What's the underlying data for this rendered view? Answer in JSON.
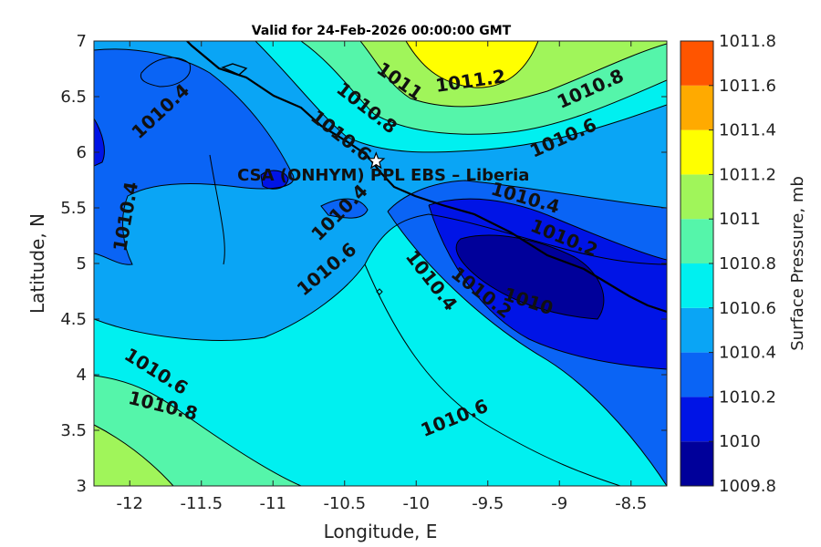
{
  "chart_data": {
    "type": "contour",
    "title": "Valid for 24-Feb-2026 00:00:00 GMT",
    "xlabel": "Longitude, E",
    "ylabel": "Latitude, N",
    "xlim": [
      -12.25,
      -8.25
    ],
    "ylim": [
      3,
      7
    ],
    "xticks": [
      -12,
      -11.5,
      -11,
      -10.5,
      -10,
      -9.5,
      -9,
      -8.5
    ],
    "yticks": [
      3,
      3.5,
      4,
      4.5,
      5,
      5.5,
      6,
      6.5,
      7
    ],
    "xtick_labels": [
      "-12",
      "-11.5",
      "-11",
      "-10.5",
      "-10",
      "-9.5",
      "-9",
      "-8.5"
    ],
    "ytick_labels": [
      "3",
      "3.5",
      "4",
      "4.5",
      "5",
      "5.5",
      "6",
      "6.5",
      "7"
    ],
    "colorbar": {
      "label": "Surface Pressure, mb",
      "levels": [
        1009.8,
        1010,
        1010.2,
        1010.4,
        1010.6,
        1010.8,
        1011,
        1011.2,
        1011.4,
        1011.6,
        1011.8
      ],
      "tick_labels": [
        "1009.8",
        "1010",
        "1010.2",
        "1010.4",
        "1010.6",
        "1010.8",
        "1011",
        "1011.2",
        "1011.4",
        "1011.6",
        "1011.8"
      ],
      "colors": [
        "#00009a",
        "#0014e6",
        "#0a64f5",
        "#0aa5f5",
        "#00f0f0",
        "#55f5aa",
        "#a0f55a",
        "#ffff00",
        "#ffaa00",
        "#ff5500",
        "#ff0000"
      ]
    },
    "site": {
      "name": "CSA (ONHYM) PPL EBS  – Liberia",
      "lon": -10.28,
      "lat": 5.92
    },
    "contour_labels": [
      {
        "text": "1010.4",
        "lon": -11.78,
        "lat": 6.36,
        "rot": -43
      },
      {
        "text": "1011",
        "lon": -10.12,
        "lat": 6.63,
        "rot": 35
      },
      {
        "text": "1011.2",
        "lon": -9.62,
        "lat": 6.63,
        "rot": -8
      },
      {
        "text": "1010.8",
        "lon": -8.78,
        "lat": 6.56,
        "rot": -24
      },
      {
        "text": "1010.8",
        "lon": -10.35,
        "lat": 6.39,
        "rot": 38
      },
      {
        "text": "1010.6",
        "lon": -10.53,
        "lat": 6.14,
        "rot": 38
      },
      {
        "text": "1010.6",
        "lon": -8.97,
        "lat": 6.12,
        "rot": -24
      },
      {
        "text": "1010.4",
        "lon": -12.02,
        "lat": 5.42,
        "rot": -80
      },
      {
        "text": "1010.4",
        "lon": -10.53,
        "lat": 5.45,
        "rot": -45
      },
      {
        "text": "1010.4",
        "lon": -9.24,
        "lat": 5.58,
        "rot": 16
      },
      {
        "text": "1010.2",
        "lon": -8.97,
        "lat": 5.22,
        "rot": 22
      },
      {
        "text": "1010.6",
        "lon": -10.62,
        "lat": 4.94,
        "rot": -40
      },
      {
        "text": "1010.4",
        "lon": -9.9,
        "lat": 4.84,
        "rot": 52
      },
      {
        "text": "1010.2",
        "lon": -9.55,
        "lat": 4.73,
        "rot": 38
      },
      {
        "text": "1010",
        "lon": -9.22,
        "lat": 4.65,
        "rot": 18
      },
      {
        "text": "1010.6",
        "lon": -11.82,
        "lat": 4.02,
        "rot": 32
      },
      {
        "text": "1010.8",
        "lon": -11.77,
        "lat": 3.71,
        "rot": 14
      },
      {
        "text": "1010.6",
        "lon": -9.73,
        "lat": 3.6,
        "rot": -22
      }
    ]
  }
}
